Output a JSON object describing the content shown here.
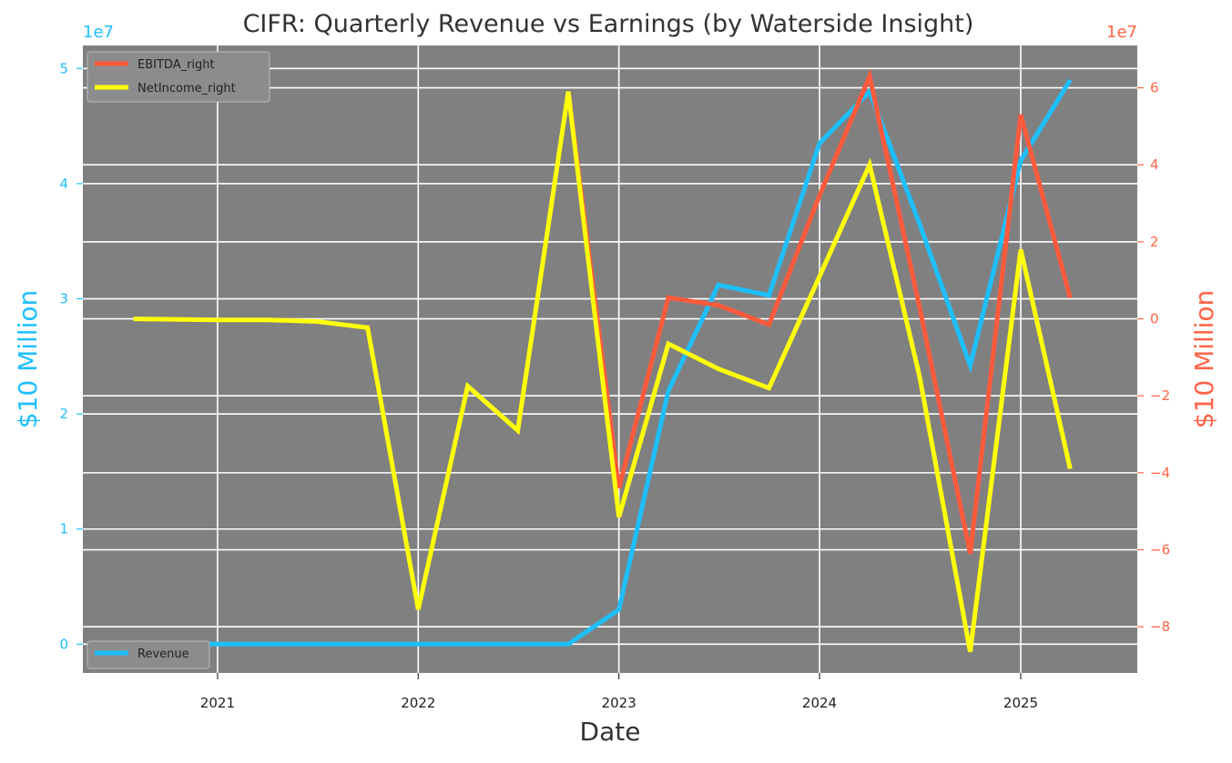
{
  "chart_data": {
    "type": "line",
    "title": "CIFR: Quarterly Revenue vs Earnings (by Waterside Insight)",
    "xlabel": "Date",
    "ylabel_left": "$10 Million",
    "ylabel_right": "$10 Million",
    "left_axis_multiplier": "1e7",
    "right_axis_multiplier": "1e7",
    "x_ticks": [
      "2021",
      "2022",
      "2023",
      "2024",
      "2025"
    ],
    "y_left_ticks": [
      "0",
      "1",
      "2",
      "3",
      "4",
      "5"
    ],
    "y_right_ticks": [
      "−8",
      "−6",
      "−4",
      "−2",
      "0",
      "2",
      "4",
      "6"
    ],
    "y_left_range": [
      -2500000,
      52000000
    ],
    "y_right_range": [
      -92000000,
      71000000
    ],
    "grid": true,
    "legend_right_placement": "upper-left",
    "legend_left_placement": "lower-left",
    "colors": {
      "revenue": "#1ebfff",
      "ebitda": "#ff5a3c",
      "netincome": "#ffff0a",
      "plot_background": "#808080",
      "grid": "#ffffff",
      "left_axis": "#1ebfff",
      "right_axis": "#ff6347"
    },
    "series": [
      {
        "name": "Revenue",
        "axis": "left",
        "x": [
          "2020-08-01",
          "2021-01-01",
          "2021-04-01",
          "2021-07-01",
          "2021-10-01",
          "2022-01-01",
          "2022-04-01",
          "2022-07-01",
          "2022-10-01",
          "2023-01-01",
          "2023-04-01",
          "2023-07-01",
          "2023-10-01",
          "2024-01-01",
          "2024-04-01",
          "2024-07-01",
          "2024-10-01",
          "2025-01-01",
          "2025-04-01"
        ],
        "values": [
          0,
          0,
          0,
          0,
          0,
          0,
          0,
          0,
          0,
          3000000,
          22000000,
          31200000,
          30300000,
          43500000,
          48000000,
          36500000,
          24200000,
          42000000,
          49000000
        ]
      },
      {
        "name": "EBITDA_right",
        "axis": "right",
        "x": [
          "2022-10-01",
          "2023-01-01",
          "2023-04-01",
          "2023-07-01",
          "2023-10-01",
          "2024-01-01",
          "2024-04-01",
          "2024-07-01",
          "2024-10-01",
          "2025-01-01",
          "2025-04-01"
        ],
        "values": [
          59000000,
          -44000000,
          5500000,
          3500000,
          -1500000,
          32000000,
          63000000,
          3000000,
          -61000000,
          53000000,
          5500000
        ]
      },
      {
        "name": "NetIncome_right",
        "axis": "right",
        "x": [
          "2020-08-01",
          "2021-01-01",
          "2021-04-01",
          "2021-07-01",
          "2021-10-01",
          "2022-01-01",
          "2022-04-01",
          "2022-07-01",
          "2022-10-01",
          "2023-01-01",
          "2023-04-01",
          "2023-07-01",
          "2023-10-01",
          "2024-01-01",
          "2024-04-01",
          "2024-07-01",
          "2024-10-01",
          "2025-01-01",
          "2025-04-01"
        ],
        "values": [
          0,
          -300000,
          -300000,
          -700000,
          -2300000,
          -75500000,
          -17500000,
          -29000000,
          59000000,
          -51500000,
          -6500000,
          -13000000,
          -18000000,
          11000000,
          40000000,
          -15000000,
          -86500000,
          18000000,
          -39000000
        ]
      }
    ]
  }
}
